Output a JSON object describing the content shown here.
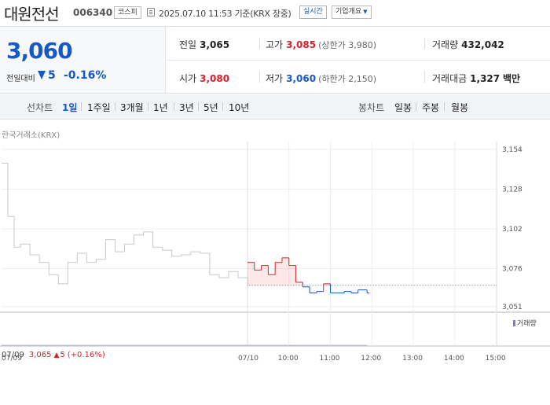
{
  "header": {
    "stock_name": "대원전선",
    "stock_code": "006340",
    "market_badge": "코스피",
    "timestamp": "2025.07.10 11:53",
    "basis": "기준(KRX 장중)",
    "realtime_button": "실시간",
    "company_info_button": "기업개요",
    "icons": [
      "clock-icon",
      "chevron-down-icon"
    ]
  },
  "summary": {
    "current_price": "3,060",
    "change_label": "전일대비",
    "change_value": "5",
    "change_pct": "-0.16%",
    "direction": "down",
    "prev_close": {
      "label": "전일",
      "value": "3,065"
    },
    "high": {
      "label": "고가",
      "value": "3,085",
      "sub": "(상한가 3,980)"
    },
    "volume": {
      "label": "거래량",
      "value": "432,042"
    },
    "open": {
      "label": "시가",
      "value": "3,080"
    },
    "low": {
      "label": "저가",
      "value": "3,060",
      "sub": "(하한가 2,150)"
    },
    "trade_value": {
      "label": "거래대금",
      "value": "1,327",
      "unit": "백만"
    }
  },
  "toolbar": {
    "line_chart_label": "선차트",
    "line_periods": [
      "1일",
      "1주일",
      "3개월",
      "1년",
      "3년",
      "5년",
      "10년"
    ],
    "active_period": "1일",
    "candle_chart_label": "봉차트",
    "candle_periods": [
      "일봉",
      "주봉",
      "월봉"
    ]
  },
  "colors": {
    "up": "#d9202a",
    "down": "#1558c8",
    "prev_day_line": "#c9c9c9",
    "volume_bar": "#8a78c8"
  },
  "chart_data": {
    "type": "line",
    "source_label": "한국거래소(KRX)",
    "y_ticks": [
      "3,154",
      "3,128",
      "3,102",
      "3,076",
      "3,051"
    ],
    "ylim": [
      3051,
      3154
    ],
    "x_ticks": [
      "07/09",
      "07/10",
      "10:00",
      "11:00",
      "12:00",
      "13:00",
      "14:00",
      "15:00"
    ],
    "reference_line": 3065,
    "series": [
      {
        "x": [
          "07/09 09:00",
          "07/09 09:10",
          "07/09 09:20",
          "07/09 09:30",
          "07/09 09:45",
          "07/09 10:00",
          "07/09 10:15",
          "07/09 10:30",
          "07/09 10:45",
          "07/09 11:00",
          "07/09 11:15",
          "07/09 11:30",
          "07/09 11:45",
          "07/09 12:00",
          "07/09 12:15",
          "07/09 12:30",
          "07/09 12:45",
          "07/09 13:00",
          "07/09 13:15",
          "07/09 13:30",
          "07/09 13:45",
          "07/09 14:00",
          "07/09 14:15",
          "07/09 14:30",
          "07/09 14:45",
          "07/09 15:00",
          "07/09 15:15",
          "07/09 15:30"
        ],
        "values": [
          3145,
          3110,
          3090,
          3092,
          3085,
          3080,
          3072,
          3066,
          3080,
          3086,
          3080,
          3082,
          3095,
          3087,
          3092,
          3098,
          3100,
          3090,
          3088,
          3084,
          3085,
          3087,
          3086,
          3072,
          3070,
          3074,
          3070,
          3065
        ]
      },
      {
        "x": [
          "07/10 09:00",
          "07/10 09:10",
          "07/10 09:20",
          "07/10 09:30",
          "07/10 09:40",
          "07/10 09:50",
          "07/10 10:00",
          "07/10 10:10",
          "07/10 10:20",
          "07/10 10:30",
          "07/10 10:40",
          "07/10 10:50",
          "07/10 11:00",
          "07/10 11:10",
          "07/10 11:20",
          "07/10 11:30",
          "07/10 11:40",
          "07/10 11:53"
        ],
        "values": [
          3080,
          3075,
          3078,
          3072,
          3080,
          3083,
          3078,
          3067,
          3064,
          3060,
          3061,
          3066,
          3060,
          3060,
          3061,
          3060,
          3062,
          3060
        ]
      }
    ],
    "volume_legend": "거래량"
  },
  "footer": {
    "date": "07/09",
    "prev_close": "3,065",
    "change": "5",
    "change_pct": "(+0.16%)"
  }
}
